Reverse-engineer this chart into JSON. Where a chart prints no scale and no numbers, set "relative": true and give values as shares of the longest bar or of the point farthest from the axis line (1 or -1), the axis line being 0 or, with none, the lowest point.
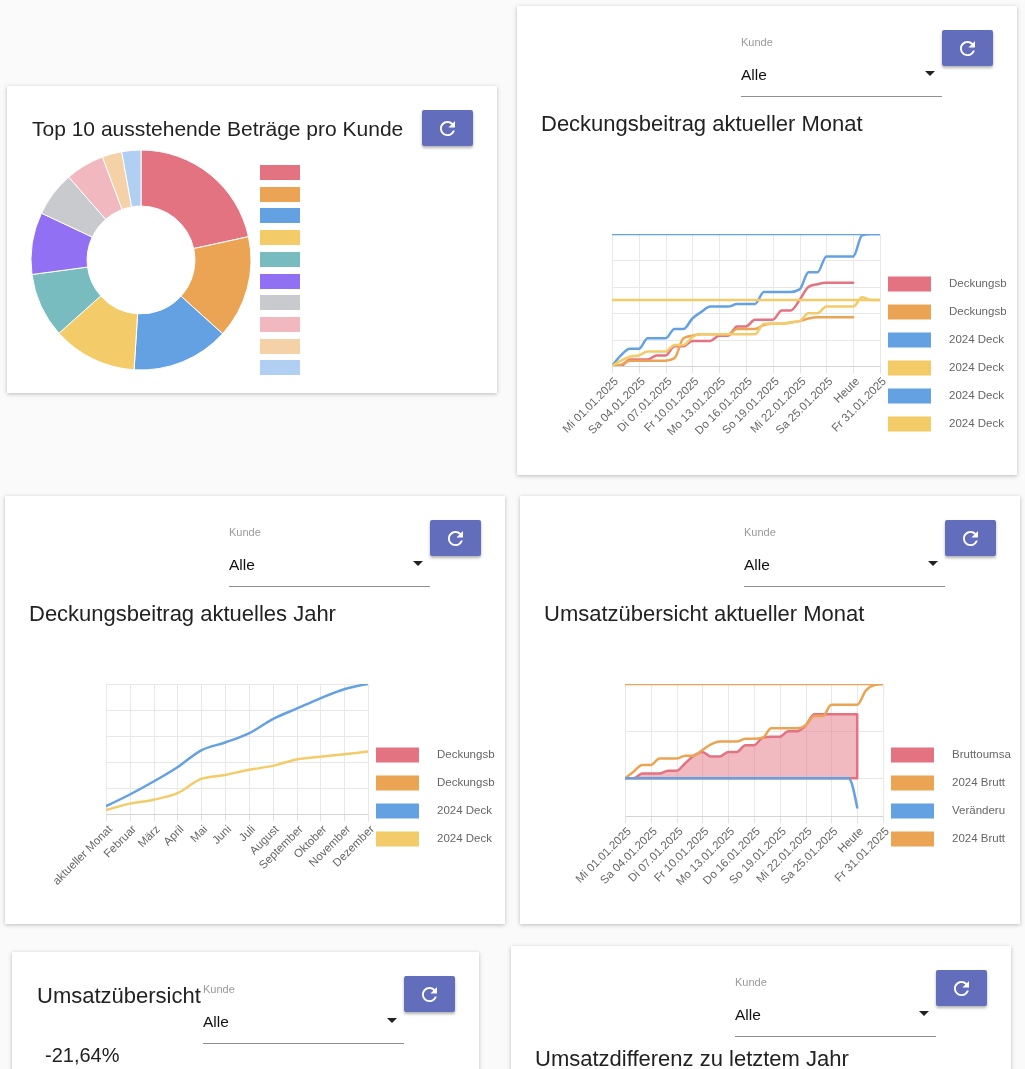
{
  "chart_data": [
    {
      "type": "donut",
      "title": "Top 10 ausstehende Beträge pro Kunde",
      "categories": [
        null,
        null,
        null,
        null,
        null,
        null,
        null,
        null,
        null,
        null
      ],
      "values": [
        21.6,
        15.1,
        14.3,
        12.4,
        9.5,
        9.1,
        6.6,
        5.7,
        2.9,
        2.8
      ],
      "colors": [
        "#e47382",
        "#eba454",
        "#64a1e3",
        "#f3cc69",
        "#78bcbf",
        "#9270f3",
        "#c9cace",
        "#f1b8c0",
        "#f5d1a8",
        "#b0cff2"
      ]
    },
    {
      "type": "line",
      "title": "Deckungsbeitrag aktueller Monat",
      "annotations": [
        "Kunde",
        "Alle"
      ],
      "relative": true,
      "grid": true,
      "legend": "right",
      "x": [
        "2025-01-01",
        "2025-01-02",
        "2025-01-03",
        "2025-01-04",
        "2025-01-05",
        "2025-01-06",
        "2025-01-07",
        "2025-01-08",
        "2025-01-09",
        "2025-01-10",
        "2025-01-11",
        "2025-01-12",
        "2025-01-13",
        "2025-01-14",
        "2025-01-15",
        "2025-01-16",
        "2025-01-17",
        "2025-01-18",
        "2025-01-19",
        "2025-01-20",
        "2025-01-21",
        "2025-01-22",
        "2025-01-23",
        "2025-01-24",
        "2025-01-25",
        "2025-01-26",
        "2025-01-27",
        "2025-01-28",
        "2025-01-29",
        "2025-01-30",
        "2025-01-31"
      ],
      "xlim": [
        "2025-01-01",
        "2025-01-31"
      ],
      "xticks": [
        {
          "value": "2025-01-01",
          "label": "Mi 01.01.2025"
        },
        {
          "value": "2025-01-04",
          "label": "Sa 04.01.2025"
        },
        {
          "value": "2025-01-07",
          "label": "Di 07.01.2025"
        },
        {
          "value": "2025-01-10",
          "label": "Fr 10.01.2025"
        },
        {
          "value": "2025-01-13",
          "label": "Mo 13.01.2025"
        },
        {
          "value": "2025-01-16",
          "label": "Do 16.01.2025"
        },
        {
          "value": "2025-01-19",
          "label": "So 19.01.2025"
        },
        {
          "value": "2025-01-22",
          "label": "Mi 22.01.2025"
        },
        {
          "value": "2025-01-25",
          "label": "Sa 25.01.2025"
        },
        {
          "value": "2025-01-28",
          "label": "Heute"
        },
        {
          "value": "2025-01-31",
          "label": "Fr 31.01.2025"
        }
      ],
      "series": [
        {
          "name": "Deckungsb",
          "color": "#e47382",
          "values": [
            0,
            0,
            0.05,
            0.05,
            0.05,
            0.08,
            0.08,
            0.15,
            0.15,
            0.19,
            0.19,
            0.19,
            0.23,
            0.23,
            0.3,
            0.3,
            0.35,
            0.35,
            0.35,
            0.42,
            0.42,
            0.5,
            0.6,
            0.62,
            0.63,
            0.63,
            0.63,
            0.63,
            null,
            null,
            null
          ]
        },
        {
          "name": "Deckungsb",
          "color": "#eba454",
          "values": [
            0,
            0.01,
            0.04,
            0.04,
            0.04,
            0.04,
            0.04,
            0.06,
            0.21,
            0.23,
            0.24,
            0.24,
            0.24,
            0.24,
            0.28,
            0.28,
            0.28,
            0.31,
            0.32,
            0.32,
            0.33,
            0.34,
            0.36,
            0.37,
            0.37,
            0.37,
            0.37,
            0.37,
            null,
            null,
            null
          ]
        },
        {
          "name": "2024 Deck",
          "color": "#64a1e3",
          "values": [
            0,
            0.08,
            0.13,
            0.13,
            0.21,
            0.21,
            0.21,
            0.28,
            0.28,
            0.36,
            0.41,
            0.45,
            0.45,
            0.45,
            0.47,
            0.47,
            0.47,
            0.56,
            0.56,
            0.56,
            0.56,
            0.58,
            0.71,
            0.71,
            0.83,
            0.83,
            0.83,
            0.83,
            0.99,
            1,
            1
          ]
        },
        {
          "name": "2024 Deck",
          "color": "#f3cc69",
          "values": [
            0,
            0.04,
            0.07,
            0.08,
            0.11,
            0.11,
            0.11,
            0.16,
            0.16,
            0.22,
            0.24,
            0.24,
            0.24,
            0.24,
            0.24,
            0.24,
            0.24,
            0.32,
            0.32,
            0.32,
            0.33,
            0.34,
            0.4,
            0.4,
            0.45,
            0.45,
            0.45,
            0.45,
            0.52,
            0.5,
            0.5
          ]
        },
        {
          "name": "2024 Deck",
          "color": "#64a1e3",
          "values": [
            1,
            1,
            1,
            1,
            1,
            1,
            1,
            1,
            1,
            1,
            1,
            1,
            1,
            1,
            1,
            1,
            1,
            1,
            1,
            1,
            1,
            1,
            1,
            1,
            1,
            1,
            1,
            1,
            1,
            1,
            1
          ]
        },
        {
          "name": "2024 Deck",
          "color": "#f3cc69",
          "values": [
            0.5,
            0.5,
            0.5,
            0.5,
            0.5,
            0.5,
            0.5,
            0.5,
            0.5,
            0.5,
            0.5,
            0.5,
            0.5,
            0.5,
            0.5,
            0.5,
            0.5,
            0.5,
            0.5,
            0.5,
            0.5,
            0.5,
            0.5,
            0.5,
            0.5,
            0.5,
            0.5,
            0.5,
            0.5,
            0.5,
            0.5
          ]
        }
      ]
    },
    {
      "type": "line",
      "title": "Deckungsbeitrag aktuelles Jahr",
      "annotations": [
        "Kunde",
        "Alle"
      ],
      "relative": true,
      "grid": true,
      "legend": "right",
      "categories": [
        "aktueller Monat",
        "Februar",
        "März",
        "April",
        "Mai",
        "Juni",
        "Juli",
        "August",
        "September",
        "Oktober",
        "November",
        "Dezember"
      ],
      "series": [
        {
          "name": "Deckungsb",
          "color": "#e47382",
          "values": [
            null,
            null,
            null,
            null,
            null,
            null,
            null,
            null,
            null,
            null,
            null,
            null
          ]
        },
        {
          "name": "Deckungsb",
          "color": "#eba454",
          "values": [
            null,
            null,
            null,
            null,
            null,
            null,
            null,
            null,
            null,
            null,
            null,
            null
          ]
        },
        {
          "name": "2024 Deck",
          "color": "#64a1e3",
          "values": [
            0.06,
            0.15,
            0.25,
            0.36,
            0.49,
            0.55,
            0.62,
            0.73,
            0.81,
            0.89,
            0.96,
            1
          ]
        },
        {
          "name": "2024 Deck",
          "color": "#f3cc69",
          "values": [
            0.03,
            0.08,
            0.11,
            0.16,
            0.27,
            0.3,
            0.34,
            0.37,
            0.42,
            0.44,
            0.46,
            0.48
          ]
        }
      ]
    },
    {
      "type": "line",
      "title": "Umsatzübersicht aktueller Monat",
      "annotations": [
        "Kunde",
        "Alle"
      ],
      "relative": true,
      "grid": true,
      "legend": "right",
      "x": [
        "2025-01-01",
        "2025-01-02",
        "2025-01-03",
        "2025-01-04",
        "2025-01-05",
        "2025-01-06",
        "2025-01-07",
        "2025-01-08",
        "2025-01-09",
        "2025-01-10",
        "2025-01-11",
        "2025-01-12",
        "2025-01-13",
        "2025-01-14",
        "2025-01-15",
        "2025-01-16",
        "2025-01-17",
        "2025-01-18",
        "2025-01-19",
        "2025-01-20",
        "2025-01-21",
        "2025-01-22",
        "2025-01-23",
        "2025-01-24",
        "2025-01-25",
        "2025-01-26",
        "2025-01-27",
        "2025-01-28",
        "2025-01-29",
        "2025-01-30",
        "2025-01-31"
      ],
      "xlim": [
        "2025-01-01",
        "2025-01-31"
      ],
      "xticks": [
        {
          "value": "2025-01-01",
          "label": "Mi 01.01.2025"
        },
        {
          "value": "2025-01-04",
          "label": "Sa 04.01.2025"
        },
        {
          "value": "2025-01-07",
          "label": "Di 07.01.2025"
        },
        {
          "value": "2025-01-10",
          "label": "Fr 10.01.2025"
        },
        {
          "value": "2025-01-13",
          "label": "Mo 13.01.2025"
        },
        {
          "value": "2025-01-16",
          "label": "Do 16.01.2025"
        },
        {
          "value": "2025-01-19",
          "label": "So 19.01.2025"
        },
        {
          "value": "2025-01-22",
          "label": "Mi 22.01.2025"
        },
        {
          "value": "2025-01-25",
          "label": "Sa 25.01.2025"
        },
        {
          "value": "2025-01-28",
          "label": "Heute"
        },
        {
          "value": "2025-01-31",
          "label": "Fr 31.01.2025"
        }
      ],
      "series": [
        {
          "name": "Bruttoumsa",
          "type": "area",
          "color": "#e47382",
          "values": [
            0,
            0,
            0.05,
            0.05,
            0.05,
            0.08,
            0.08,
            0.16,
            0.24,
            0.28,
            0.23,
            0.23,
            0.28,
            0.28,
            0.35,
            0.35,
            0.43,
            0.44,
            0.44,
            0.5,
            0.5,
            0.56,
            0.68,
            0.68,
            0.68,
            0.68,
            0.68,
            0.68,
            null,
            null,
            null
          ]
        },
        {
          "name": "2024 Brutt",
          "color": "#eba454",
          "values": [
            0,
            0.07,
            0.14,
            0.14,
            0.21,
            0.21,
            0.21,
            0.24,
            0.24,
            0.3,
            0.36,
            0.39,
            0.39,
            0.39,
            0.42,
            0.42,
            0.43,
            0.53,
            0.53,
            0.53,
            0.53,
            0.56,
            0.66,
            0.66,
            0.78,
            0.78,
            0.78,
            0.78,
            0.93,
            0.99,
            1
          ]
        },
        {
          "name": "Veränderu",
          "color": "#64a1e3",
          "values": [
            0,
            0,
            0,
            0,
            0,
            0,
            0,
            0,
            0,
            0,
            0,
            0,
            0,
            0,
            0,
            0,
            0,
            0,
            0,
            0,
            0,
            0,
            0,
            0,
            0,
            0,
            0,
            -0.31,
            null,
            null,
            null
          ]
        },
        {
          "name": "2024 Brutt",
          "color": "#eba454",
          "values": [
            1,
            1,
            1,
            1,
            1,
            1,
            1,
            1,
            1,
            1,
            1,
            1,
            1,
            1,
            1,
            1,
            1,
            1,
            1,
            1,
            1,
            1,
            1,
            1,
            1,
            1,
            1,
            1,
            1,
            1,
            1
          ]
        }
      ]
    },
    {
      "type": "other",
      "title": "Umsatzübersicht",
      "annotations": [
        "Kunde",
        "Alle",
        "-21,64%"
      ]
    },
    {
      "type": "other",
      "title": "Umsatzdifferenz zu letztem Jahr",
      "annotations": [
        "Kunde",
        "Alle"
      ]
    }
  ]
}
